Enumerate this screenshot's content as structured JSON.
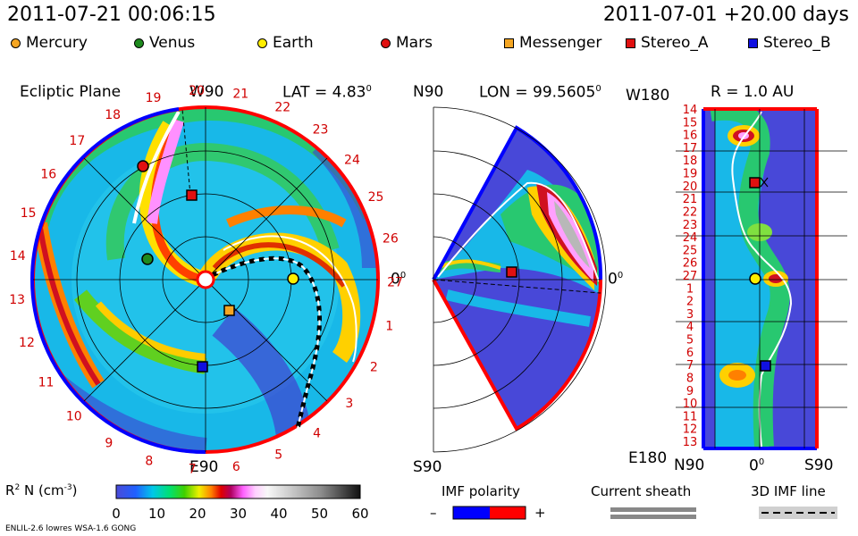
{
  "header": {
    "left_timestamp": "2011-07-21 00:06:15",
    "right_timestamp": "2011-07-01 +20.00 days"
  },
  "legend": [
    {
      "name": "Mercury",
      "shape": "circle",
      "color": "#f5a623"
    },
    {
      "name": "Venus",
      "shape": "circle",
      "color": "#1e8a1e"
    },
    {
      "name": "Earth",
      "shape": "circle",
      "color": "#ffee00"
    },
    {
      "name": "Mars",
      "shape": "circle",
      "color": "#e01010"
    },
    {
      "name": "Messenger",
      "shape": "square",
      "color": "#f5a623"
    },
    {
      "name": "Stereo_A",
      "shape": "square",
      "color": "#e01010"
    },
    {
      "name": "Stereo_B",
      "shape": "square",
      "color": "#1010e0"
    }
  ],
  "panels": {
    "ecliptic": {
      "title": "Ecliptic Plane",
      "top_label": "W90",
      "bottom_label": "E90",
      "lat_label": "LAT = 4.83",
      "lat_sup": "0",
      "right_label": "0",
      "right_sup": "0",
      "carrington": [
        "19",
        "20",
        "21",
        "22",
        "23",
        "24",
        "25",
        "26",
        "27",
        "1",
        "2",
        "3",
        "4",
        "5",
        "6",
        "7",
        "8",
        "9",
        "10",
        "11",
        "12",
        "13",
        "14",
        "15",
        "16",
        "17",
        "18"
      ]
    },
    "meridional": {
      "top_label": "N90",
      "bottom_label": "S90",
      "lon_label": "LON = 99.5605",
      "lon_sup": "0",
      "right_label": "0",
      "right_sup": "0"
    },
    "earth_r": {
      "r_label": "R = 1.0 AU",
      "top_label": "W180",
      "bottom_label": "E180",
      "x_labels": [
        "N90",
        "0",
        "S90"
      ],
      "zero_sup": "0",
      "rows": [
        "14",
        "15",
        "16",
        "17",
        "18",
        "19",
        "20",
        "21",
        "22",
        "23",
        "24",
        "25",
        "26",
        "27",
        "1",
        "2",
        "3",
        "4",
        "5",
        "6",
        "7",
        "8",
        "9",
        "10",
        "11",
        "12",
        "13"
      ]
    }
  },
  "colorbar": {
    "label": "R",
    "label_sup": "2",
    "label_unit": "N (cm",
    "label_unit_sup": "-3",
    "label_close": ")",
    "ticks": [
      "0",
      "10",
      "20",
      "30",
      "40",
      "50",
      "60"
    ]
  },
  "imf_polarity": {
    "title": "IMF polarity",
    "minus": "–",
    "plus": "+",
    "colors": [
      "#0000ff",
      "#ff0000"
    ]
  },
  "current_sheath": {
    "title": "Current sheath"
  },
  "imf_line": {
    "title": "3D IMF line"
  },
  "footer": {
    "model_text": "ENLIL-2.6 lowres WSA-1.6 GONG"
  },
  "chart_data": {
    "type": "heatmap",
    "title": "",
    "quantity": "R2 N (cm-3)",
    "colorbar_range": [
      0,
      60
    ],
    "colorbar_ticks": [
      0,
      10,
      20,
      30,
      40,
      50,
      60
    ],
    "observers": [
      {
        "name": "Mercury",
        "marker": "circle"
      },
      {
        "name": "Venus",
        "marker": "circle"
      },
      {
        "name": "Earth",
        "marker": "circle"
      },
      {
        "name": "Mars",
        "marker": "circle"
      },
      {
        "name": "Messenger",
        "marker": "square"
      },
      {
        "name": "Stereo_A",
        "marker": "square"
      },
      {
        "name": "Stereo_B",
        "marker": "square"
      }
    ]
  }
}
